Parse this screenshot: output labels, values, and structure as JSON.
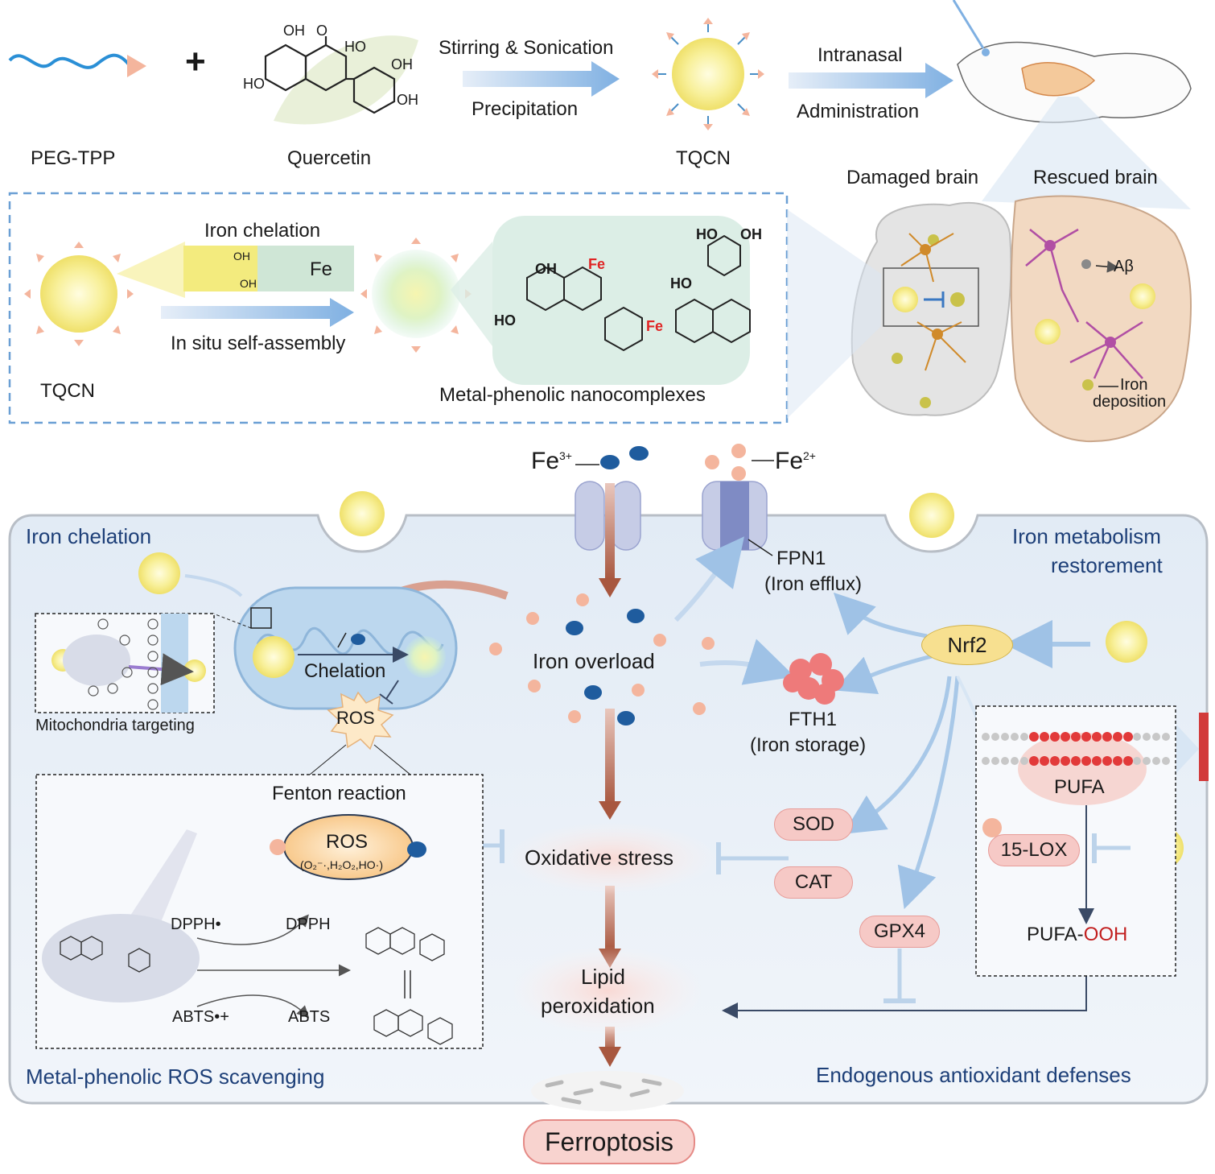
{
  "synthesis": {
    "peg_tpp": "PEG-TPP",
    "plus": "+",
    "quercetin": "Quercetin",
    "step1_top": "Stirring & Sonication",
    "step1_bottom": "Precipitation",
    "tqcn": "TQCN",
    "step2_top": "Intranasal",
    "step2_bottom": "Administration"
  },
  "quercetin_structure": {
    "oh_top": "OH",
    "o_top": "O",
    "ho_mid": "HO",
    "oh_right1": "OH",
    "oh_right2": "OH",
    "ho_left": "HO"
  },
  "brains": {
    "damaged": "Damaged brain",
    "rescued": "Rescued brain",
    "abeta": "Aβ",
    "iron_line1": "Iron",
    "iron_line2": "deposition"
  },
  "inset": {
    "iron_chelation": "Iron chelation",
    "fe": "Fe",
    "self_assembly": "In situ self-assembly",
    "tqcn": "TQCN",
    "complex_label": "Metal-phenolic nanocomplexes",
    "fe_red1": "Fe",
    "fe_red2": "Fe",
    "oh_a": "OH",
    "oh_b": "OH",
    "ho_a": "HO",
    "ho_b": "HO",
    "ho_c": "HO",
    "oh_c": "OH",
    "oh_d": "OH"
  },
  "ions": {
    "fe3": "Fe",
    "fe3_sup": "3+",
    "fe2": "Fe",
    "fe2_sup": "2+"
  },
  "cell": {
    "iron_chelation": "Iron chelation",
    "iron_metabolism_1": "Iron metabolism",
    "iron_metabolism_2": "restorement",
    "fpn1": "FPN1",
    "fpn1_sub": "(Iron efflux)",
    "iron_overload": "Iron overload",
    "nrf2": "Nrf2",
    "chelation": "Chelation",
    "ros": "ROS",
    "mito_targeting": "Mitochondria targeting",
    "fth1": "FTH1",
    "fth1_sub": "(Iron storage)",
    "pufa": "PUFA",
    "lox": "15-LOX",
    "pufa_ooh_a": "PUFA-",
    "pufa_ooh_b": "OOH",
    "fenton": "Fenton reaction",
    "ros_center": "ROS",
    "ros_species": "(O₂⁻·,H₂O₂,HO·)",
    "oxidative_stress": "Oxidative stress",
    "sod": "SOD",
    "cat": "CAT",
    "gpx4": "GPX4",
    "dpph_radical": "DPPH•",
    "dpph": "DPPH",
    "abts_radical": "ABTS•+",
    "abts": "ABTS",
    "lipid_1": "Lipid",
    "lipid_2": "peroxidation",
    "metal_phenolic": "Metal-phenolic ROS scavenging",
    "endogenous": "Endogenous antioxidant defenses",
    "ferroptosis": "Ferroptosis"
  },
  "colors": {
    "nanoparticle": "#f7ee8e",
    "cell_bg": "#e6eef6",
    "arrow_blue": "#9fc2e6",
    "arrow_brown": "#a8573f",
    "fe3_ion": "#1f5c9e",
    "fe2_ion": "#f4b59d",
    "pill_pink": "#f6c9c6",
    "title_blue": "#1d3f78"
  }
}
